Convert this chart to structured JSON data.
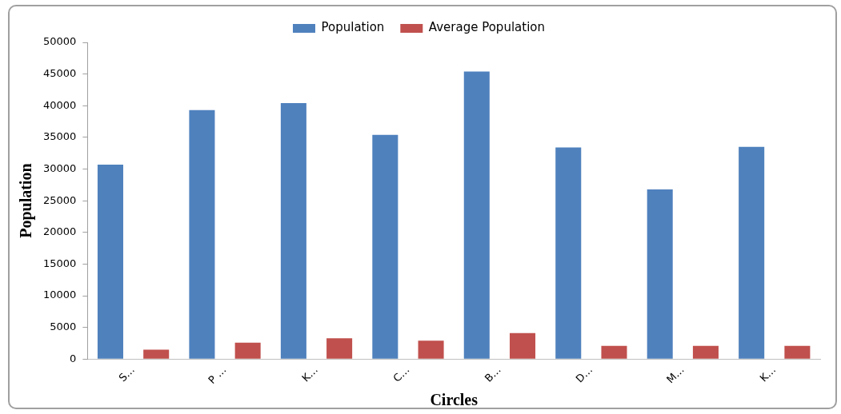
{
  "chart_data": {
    "type": "bar",
    "xlabel": "Circles",
    "ylabel": "Population",
    "categories": [
      "S…",
      "P …",
      "K…",
      "C…",
      "B…",
      "D…",
      "M…",
      "K…"
    ],
    "series": [
      {
        "name": "Population",
        "color": "#4f81bd",
        "values": [
          30700,
          39300,
          40400,
          35400,
          45400,
          33400,
          26800,
          33500
        ]
      },
      {
        "name": "Average Population",
        "color": "#c0504d",
        "values": [
          1500,
          2600,
          3300,
          2900,
          4100,
          2100,
          2100,
          2100
        ]
      }
    ],
    "ylim": [
      0,
      50000
    ],
    "yticks": [
      0,
      5000,
      10000,
      15000,
      20000,
      25000,
      30000,
      35000,
      40000,
      45000,
      50000
    ],
    "grid": false,
    "legend": "top"
  }
}
